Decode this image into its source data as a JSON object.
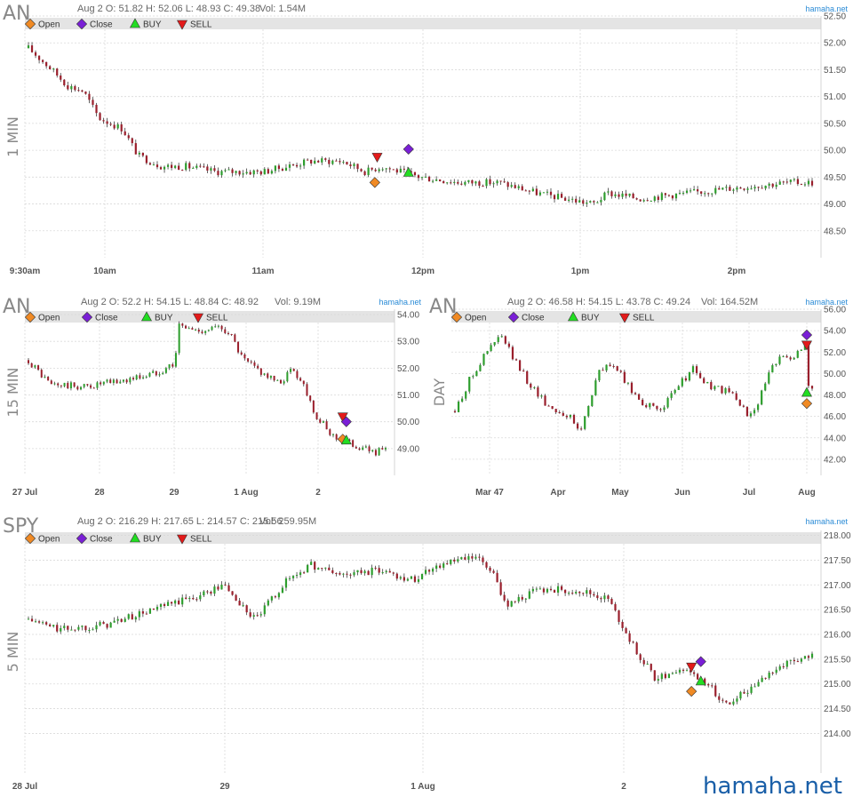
{
  "brand": "hamaha.net",
  "legend": {
    "open": "Open",
    "close": "Close",
    "buy": "BUY",
    "sell": "SELL"
  },
  "colors": {
    "up": "#2e9e2e",
    "down": "#9a1f2c",
    "open": "#f08a24",
    "close": "#7a1fd6",
    "buy": "#22dd22",
    "sell": "#e31a1a",
    "watermark": "#2a8bd6",
    "grid": "#d9d9d9"
  },
  "chart_data": [
    {
      "type": "candlestick",
      "symbol": "AN",
      "period": "1 MIN",
      "stats": "Aug 2 O: 51.82 H: 52.06 L: 48.93 C: 49.38",
      "volume": "Vol: 1.54M",
      "watermark": "hamaha.net",
      "y_ticks": [
        "52.50",
        "52.00",
        "51.50",
        "51.00",
        "50.50",
        "50.00",
        "49.50",
        "49.00",
        "48.50"
      ],
      "ylim": [
        48.0,
        52.5
      ],
      "x_ticks": [
        "9:30am",
        "10am",
        "11am",
        "12pm",
        "1pm",
        "2pm"
      ],
      "path": [
        [
          0,
          51.9
        ],
        [
          0.03,
          51.5
        ],
        [
          0.05,
          51.2
        ],
        [
          0.07,
          51.1
        ],
        [
          0.09,
          50.6
        ],
        [
          0.12,
          50.4
        ],
        [
          0.14,
          49.9
        ],
        [
          0.17,
          49.7
        ],
        [
          0.2,
          49.7
        ],
        [
          0.24,
          49.6
        ],
        [
          0.3,
          49.6
        ],
        [
          0.36,
          49.8
        ],
        [
          0.4,
          49.8
        ],
        [
          0.43,
          49.6
        ],
        [
          0.45,
          49.7
        ],
        [
          0.5,
          49.5
        ],
        [
          0.55,
          49.4
        ],
        [
          0.6,
          49.4
        ],
        [
          0.65,
          49.2
        ],
        [
          0.72,
          49.0
        ],
        [
          0.74,
          49.2
        ],
        [
          0.78,
          49.1
        ],
        [
          0.84,
          49.2
        ],
        [
          0.9,
          49.3
        ],
        [
          0.97,
          49.4
        ]
      ],
      "markers": [
        {
          "kind": "sell",
          "x": 0.445,
          "y": 49.88
        },
        {
          "kind": "open",
          "x": 0.442,
          "y": 49.4
        },
        {
          "kind": "close",
          "x": 0.485,
          "y": 50.02
        },
        {
          "kind": "buy",
          "x": 0.485,
          "y": 49.58
        }
      ]
    },
    {
      "type": "candlestick",
      "symbol": "AN",
      "period": "15 MIN",
      "stats": "Aug 2 O: 52.2 H: 54.15 L: 48.84 C: 48.92",
      "volume": "Vol: 9.19M",
      "watermark": "hamaha.net",
      "y_ticks": [
        "54.00",
        "53.00",
        "52.00",
        "51.00",
        "50.00",
        "49.00"
      ],
      "ylim": [
        48.0,
        54.2
      ],
      "x_ticks": [
        "27 Jul",
        "28",
        "29",
        "1 Aug",
        "2"
      ],
      "path": [
        [
          0,
          52.3
        ],
        [
          0.06,
          51.4
        ],
        [
          0.15,
          51.3
        ],
        [
          0.25,
          51.5
        ],
        [
          0.35,
          51.8
        ],
        [
          0.41,
          52.2
        ],
        [
          0.42,
          53.6
        ],
        [
          0.47,
          53.4
        ],
        [
          0.52,
          53.5
        ],
        [
          0.56,
          53.4
        ],
        [
          0.6,
          52.3
        ],
        [
          0.66,
          51.8
        ],
        [
          0.7,
          51.4
        ],
        [
          0.74,
          52.0
        ],
        [
          0.77,
          51.4
        ],
        [
          0.81,
          50.1
        ],
        [
          0.85,
          49.5
        ],
        [
          0.9,
          49.2
        ],
        [
          0.96,
          48.9
        ]
      ],
      "markers": [
        {
          "kind": "sell",
          "x": 0.88,
          "y": 50.2
        },
        {
          "kind": "close",
          "x": 0.89,
          "y": 50.0
        },
        {
          "kind": "open",
          "x": 0.88,
          "y": 49.35
        },
        {
          "kind": "buy",
          "x": 0.89,
          "y": 49.3
        }
      ]
    },
    {
      "type": "candlestick",
      "symbol": "AN",
      "period": "DAY",
      "stats": "Aug 2 O: 46.58 H: 54.15 L: 43.78 C: 49.24",
      "volume": "Vol: 164.52M",
      "watermark": "hamaha.net",
      "y_ticks": [
        "56.00",
        "54.00",
        "52.00",
        "50.00",
        "48.00",
        "46.00",
        "44.00",
        "42.00"
      ],
      "ylim": [
        40.5,
        56.0
      ],
      "x_ticks": [
        "Mar 47",
        "Apr",
        "May",
        "Jun",
        "Jul",
        "Aug"
      ],
      "path": [
        [
          0,
          46.5
        ],
        [
          0.05,
          50.0
        ],
        [
          0.1,
          52.5
        ],
        [
          0.13,
          53.5
        ],
        [
          0.17,
          51.0
        ],
        [
          0.21,
          49.0
        ],
        [
          0.26,
          47.0
        ],
        [
          0.32,
          46.0
        ],
        [
          0.35,
          44.5
        ],
        [
          0.4,
          50.0
        ],
        [
          0.44,
          51.0
        ],
        [
          0.48,
          49.0
        ],
        [
          0.52,
          47.5
        ],
        [
          0.56,
          46.5
        ],
        [
          0.6,
          47.5
        ],
        [
          0.64,
          49.5
        ],
        [
          0.67,
          50.5
        ],
        [
          0.7,
          49.0
        ],
        [
          0.74,
          48.5
        ],
        [
          0.78,
          48.0
        ],
        [
          0.82,
          46.0
        ],
        [
          0.85,
          47.5
        ],
        [
          0.88,
          50.0
        ],
        [
          0.92,
          52.0
        ],
        [
          0.95,
          51.5
        ],
        [
          0.98,
          53.0
        ],
        [
          0.99,
          48.8
        ]
      ],
      "markers": [
        {
          "kind": "close",
          "x": 0.985,
          "y": 53.6
        },
        {
          "kind": "sell",
          "x": 0.985,
          "y": 52.7
        },
        {
          "kind": "buy",
          "x": 0.985,
          "y": 48.2
        },
        {
          "kind": "open",
          "x": 0.985,
          "y": 47.2
        }
      ]
    },
    {
      "type": "candlestick",
      "symbol": "SPY",
      "period": "5 MIN",
      "stats": "Aug 2 O: 216.29 H: 217.65 L: 214.57 C: 215.56",
      "volume": "Vol: 259.95M",
      "watermark": "hamaha.net",
      "y_ticks": [
        "218.00",
        "217.50",
        "217.00",
        "216.50",
        "216.00",
        "215.50",
        "215.00",
        "214.50",
        "214.00"
      ],
      "ylim": [
        213.2,
        218.1
      ],
      "x_ticks": [
        "28 Jul",
        "29",
        "1 Aug",
        "2"
      ],
      "path": [
        [
          0,
          216.3
        ],
        [
          0.04,
          216.1
        ],
        [
          0.1,
          216.2
        ],
        [
          0.16,
          216.5
        ],
        [
          0.22,
          216.8
        ],
        [
          0.25,
          217.0
        ],
        [
          0.27,
          216.6
        ],
        [
          0.29,
          216.3
        ],
        [
          0.33,
          217.1
        ],
        [
          0.36,
          217.4
        ],
        [
          0.4,
          217.2
        ],
        [
          0.45,
          217.3
        ],
        [
          0.49,
          217.1
        ],
        [
          0.52,
          217.4
        ],
        [
          0.57,
          217.55
        ],
        [
          0.59,
          217.3
        ],
        [
          0.61,
          216.6
        ],
        [
          0.65,
          216.9
        ],
        [
          0.7,
          216.9
        ],
        [
          0.74,
          216.7
        ],
        [
          0.77,
          215.8
        ],
        [
          0.8,
          215.1
        ],
        [
          0.83,
          215.3
        ],
        [
          0.86,
          215.1
        ],
        [
          0.89,
          214.6
        ],
        [
          0.92,
          214.9
        ],
        [
          0.95,
          215.3
        ],
        [
          0.98,
          215.5
        ],
        [
          1.0,
          215.55
        ]
      ],
      "markers": [
        {
          "kind": "sell",
          "x": 0.846,
          "y": 215.35
        },
        {
          "kind": "close",
          "x": 0.858,
          "y": 215.45
        },
        {
          "kind": "buy",
          "x": 0.858,
          "y": 215.05
        },
        {
          "kind": "open",
          "x": 0.846,
          "y": 214.85
        }
      ]
    }
  ]
}
